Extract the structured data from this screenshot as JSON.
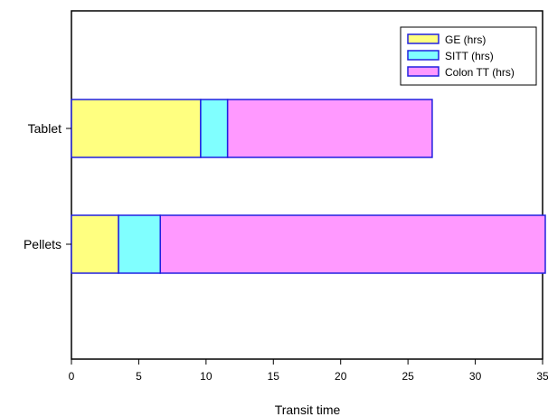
{
  "chart_data": {
    "type": "bar",
    "orientation": "horizontal",
    "stacked": true,
    "categories": [
      "Tablet",
      "Pellets"
    ],
    "series": [
      {
        "name": "GE (hrs)",
        "values": [
          9.6,
          3.5
        ],
        "color": "#ffff80"
      },
      {
        "name": "SITT (hrs)",
        "values": [
          2.0,
          3.1
        ],
        "color": "#80ffff"
      },
      {
        "name": "Colon TT (hrs)",
        "values": [
          15.2,
          28.6
        ],
        "color": "#ff99ff"
      }
    ],
    "xlabel": "Transit time",
    "ylabel": "",
    "title": "",
    "xlim": [
      0,
      35
    ],
    "xticks": [
      0,
      5,
      10,
      15,
      20,
      25,
      30,
      35
    ],
    "grid": false,
    "legend_position": "top-right",
    "bar_edge_color": "#2020e0"
  }
}
